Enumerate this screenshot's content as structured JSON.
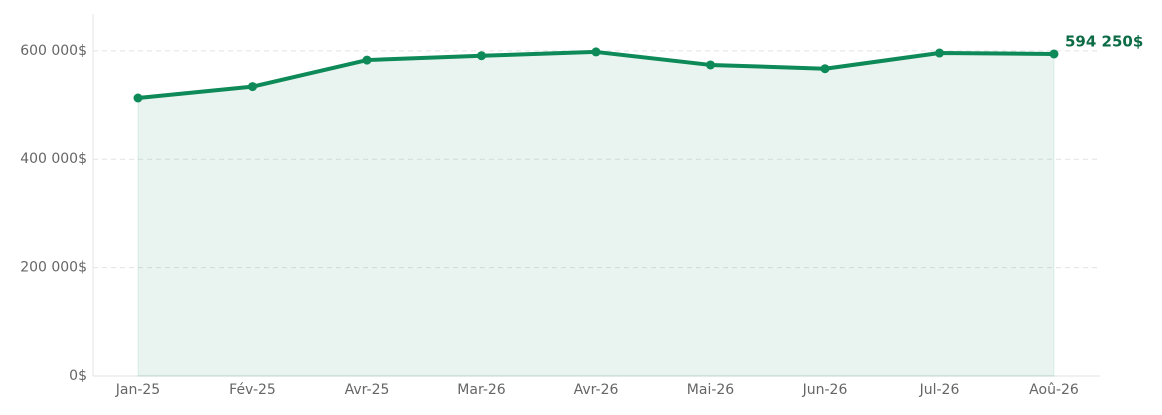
{
  "chart_data": {
    "type": "area-line",
    "categories": [
      "Jan-25",
      "Fév-25",
      "Avr-25",
      "Mar-26",
      "Avr-26",
      "Mai-26",
      "Jun-26",
      "Jul-26",
      "Aoû-26"
    ],
    "values": [
      513000,
      534000,
      583000,
      591000,
      598000,
      574000,
      567000,
      596000,
      594250
    ],
    "value_labels": [
      null,
      null,
      null,
      null,
      null,
      null,
      null,
      null,
      "594 250$"
    ],
    "color": "#0d8a57",
    "ylim": [
      0,
      668000
    ],
    "yticks": [
      {
        "value": 0,
        "label": "0$"
      },
      {
        "value": 200000,
        "label": "200 000$"
      },
      {
        "value": 400000,
        "label": "400 000$"
      },
      {
        "value": 600000,
        "label": "600 000$"
      }
    ],
    "grid": true
  }
}
